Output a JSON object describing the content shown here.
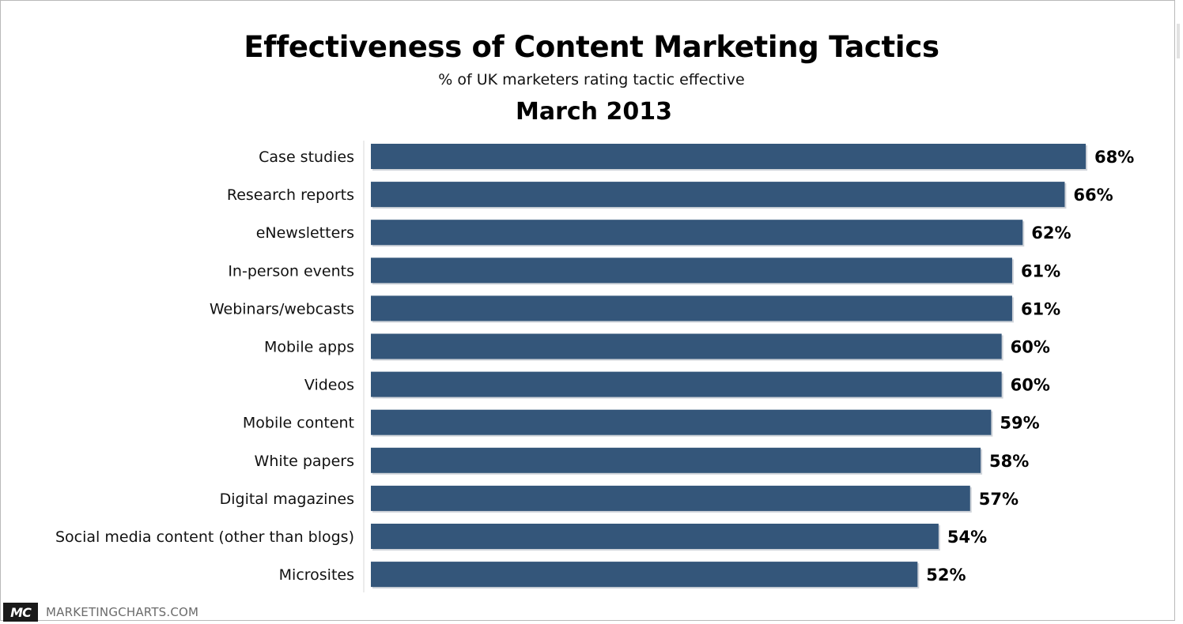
{
  "chart_data": {
    "type": "bar",
    "orientation": "horizontal",
    "title": "Effectiveness of Content Marketing Tactics",
    "subtitle": "% of UK marketers rating tactic effective",
    "period": "March 2013",
    "categories": [
      "Case studies",
      "Research reports",
      "eNewsletters",
      "In-person events",
      "Webinars/webcasts",
      "Mobile apps",
      "Videos",
      "Mobile content",
      "White papers",
      "Digital magazines",
      "Social media content (other than blogs)",
      "Microsites"
    ],
    "values": [
      68,
      66,
      62,
      61,
      61,
      60,
      60,
      59,
      58,
      57,
      54,
      52
    ],
    "value_labels": [
      "68%",
      "66%",
      "62%",
      "61%",
      "61%",
      "60%",
      "60%",
      "59%",
      "58%",
      "57%",
      "54%",
      "52%"
    ],
    "xlim": [
      0,
      68
    ],
    "grid": false,
    "legend": "none",
    "bar_color": "#34567a"
  },
  "footer": {
    "logo_text": "MC",
    "source": "MARKETINGCHARTS.COM"
  }
}
